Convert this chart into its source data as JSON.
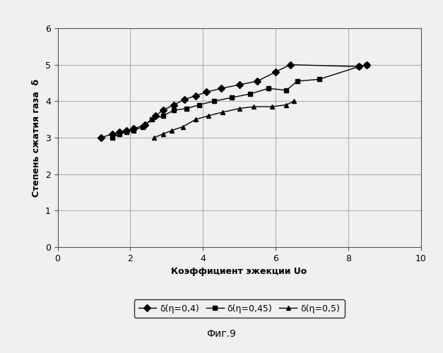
{
  "series1_label": "δ(η=0,4)",
  "series2_label": "δ(η=0,45)",
  "series3_label": "δ(η=0,5)",
  "series1_x": [
    1.2,
    1.5,
    1.7,
    1.9,
    2.1,
    2.4,
    2.7,
    2.9,
    3.2,
    3.5,
    3.8,
    4.1,
    4.5,
    5.0,
    5.5,
    6.0,
    6.4,
    8.3,
    8.5
  ],
  "series1_y": [
    3.0,
    3.1,
    3.15,
    3.2,
    3.25,
    3.35,
    3.6,
    3.75,
    3.9,
    4.05,
    4.15,
    4.25,
    4.35,
    4.45,
    4.55,
    4.8,
    5.0,
    4.95,
    5.0
  ],
  "series2_x": [
    1.5,
    1.7,
    1.9,
    2.1,
    2.35,
    2.6,
    2.9,
    3.2,
    3.55,
    3.9,
    4.3,
    4.8,
    5.3,
    5.8,
    6.3,
    6.6,
    7.2,
    8.3,
    8.5
  ],
  "series2_y": [
    3.0,
    3.1,
    3.15,
    3.2,
    3.3,
    3.5,
    3.6,
    3.75,
    3.8,
    3.9,
    4.0,
    4.1,
    4.2,
    4.35,
    4.3,
    4.55,
    4.6,
    4.95,
    5.0
  ],
  "series3_x": [
    2.65,
    2.9,
    3.15,
    3.45,
    3.8,
    4.15,
    4.55,
    5.0,
    5.4,
    5.9,
    6.3,
    6.5
  ],
  "series3_y": [
    3.0,
    3.1,
    3.2,
    3.3,
    3.5,
    3.6,
    3.7,
    3.8,
    3.85,
    3.85,
    3.9,
    4.0
  ],
  "xlabel": "Коэффициент эжекции Uo",
  "ylabel": "Степень сжатия газа  δ",
  "title_bottom": "Фиг.9",
  "xlim": [
    0,
    10
  ],
  "ylim": [
    0,
    6
  ],
  "xticks": [
    0,
    2,
    4,
    6,
    8,
    10
  ],
  "yticks": [
    0,
    1,
    2,
    3,
    4,
    5,
    6
  ],
  "color": "#000000",
  "grid_color": "#999999",
  "background": "#f0f0f0"
}
